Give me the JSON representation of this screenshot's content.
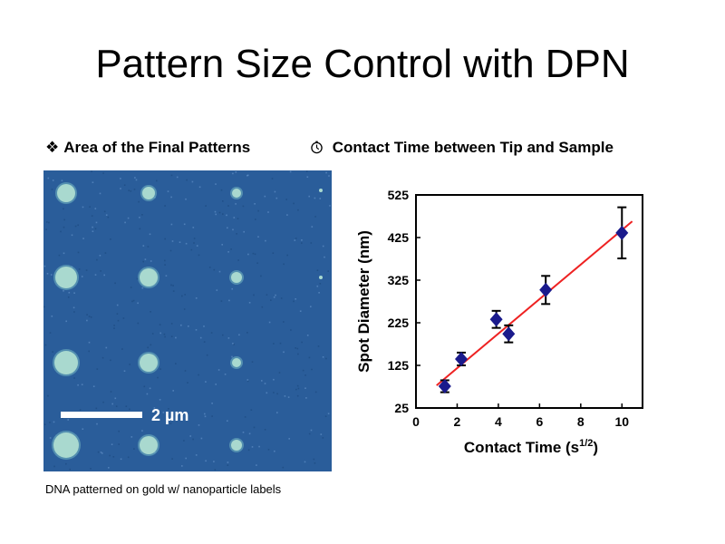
{
  "slide": {
    "title": "Pattern Size Control with DPN",
    "left_heading": {
      "icon": "diamond-bullet-icon",
      "text": "Area of the Final Patterns"
    },
    "right_heading": {
      "icon": "stopwatch-icon",
      "text": "Contact Time between Tip and Sample"
    },
    "caption": "DNA patterned on gold w/ nanoparticle labels"
  },
  "micrograph": {
    "scale_bar_label": "2 µm",
    "colors": {
      "background": "#2a5d9a",
      "dot": "#a9d9cf",
      "scale_bar": "#ffffff"
    }
  },
  "chart_data": {
    "type": "scatter",
    "title": "",
    "xlabel": "Contact Time (s",
    "xlabel_sup": "1/2",
    "xlabel_end": ")",
    "ylabel": "Spot Diameter (nm)",
    "xlim": [
      0,
      11
    ],
    "ylim": [
      25,
      525
    ],
    "xticks": [
      0,
      2,
      4,
      6,
      8,
      10
    ],
    "yticks": [
      25,
      125,
      225,
      325,
      425,
      525
    ],
    "grid": false,
    "points": [
      {
        "x": 1.4,
        "y": 76,
        "err": 14
      },
      {
        "x": 2.2,
        "y": 140,
        "err": 15
      },
      {
        "x": 3.9,
        "y": 233,
        "err": 20
      },
      {
        "x": 4.5,
        "y": 199,
        "err": 20
      },
      {
        "x": 6.3,
        "y": 302,
        "err": 33
      },
      {
        "x": 10.0,
        "y": 436,
        "err": 60
      }
    ],
    "fit_line": {
      "from": [
        1.0,
        78
      ],
      "to": [
        10.5,
        463
      ]
    },
    "colors": {
      "marker": "#1a1a8c",
      "fit": "#ee2222",
      "axis": "#000000"
    }
  }
}
